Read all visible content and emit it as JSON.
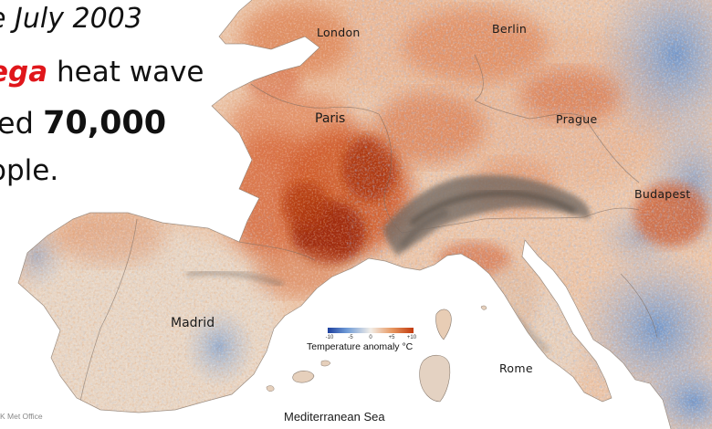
{
  "headline": {
    "line1": "e July 2003",
    "line2_accent": "ega",
    "line2_rest": " heat wave",
    "line3_prefix": "led ",
    "line3_number": "70,000",
    "line4": "ople."
  },
  "cities": {
    "london": "London",
    "berlin": "Berlin",
    "paris": "Paris",
    "prague": "Prague",
    "budapest": "Budapest",
    "madrid": "Madrid",
    "rome": "Rome"
  },
  "sea_label": "Mediterranean Sea",
  "legend": {
    "title": "Temperature anomaly °C",
    "ticks": [
      "-10",
      "-5",
      "0",
      "+5",
      "+10"
    ],
    "colors": {
      "cold": "#1c3f9e",
      "neutral": "#f2eee8",
      "hot": "#c23a0d"
    }
  },
  "credit": "K Met Office",
  "colors": {
    "accent": "#e0161b"
  }
}
